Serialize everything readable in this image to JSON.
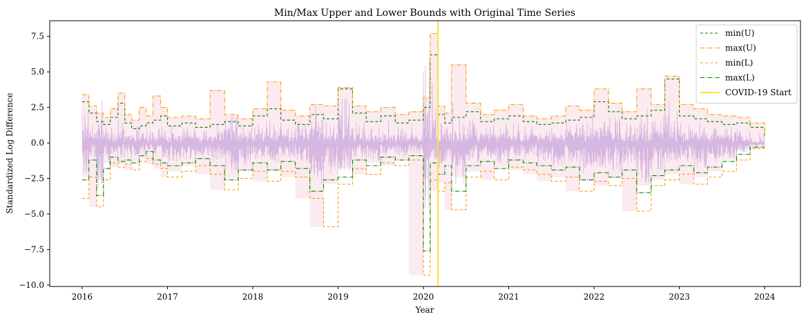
{
  "chart_data": {
    "type": "line",
    "title": "Min/Max Upper and Lower Bounds with Original Time Series",
    "xlabel": "Year",
    "ylabel": "Standardized Log Difference",
    "xlim": [
      2015.62,
      2024.42
    ],
    "ylim": [
      -10.1,
      8.6
    ],
    "x_ticks": [
      2016,
      2017,
      2018,
      2019,
      2020,
      2021,
      2022,
      2023,
      2024
    ],
    "x_tick_labels": [
      "2016",
      "2017",
      "2018",
      "2019",
      "2020",
      "2021",
      "2022",
      "2023",
      "2024"
    ],
    "y_ticks": [
      7.5,
      5.0,
      2.5,
      0.0,
      -2.5,
      -5.0,
      -7.5,
      -10.0
    ],
    "y_tick_labels": [
      "7.5",
      "5.0",
      "2.5",
      "0.0",
      "−2.5",
      "−5.0",
      "−7.5",
      "−10.0"
    ],
    "grid": false,
    "legend_position": "top-right",
    "series": [
      {
        "name": "min(U)",
        "color": "#008000",
        "dash": "4,3",
        "x": [
          2016.0,
          2016.08,
          2016.17,
          2016.25,
          2016.33,
          2016.42,
          2016.5,
          2016.58,
          2016.67,
          2016.75,
          2016.83,
          2016.92,
          2017.0,
          2017.17,
          2017.33,
          2017.5,
          2017.67,
          2017.83,
          2018.0,
          2018.17,
          2018.33,
          2018.5,
          2018.67,
          2018.83,
          2019.0,
          2019.17,
          2019.33,
          2019.5,
          2019.67,
          2019.83,
          2020.0,
          2020.08,
          2020.17,
          2020.25,
          2020.33,
          2020.5,
          2020.67,
          2020.83,
          2021.0,
          2021.17,
          2021.33,
          2021.5,
          2021.67,
          2021.83,
          2022.0,
          2022.17,
          2022.33,
          2022.5,
          2022.67,
          2022.83,
          2023.0,
          2023.17,
          2023.33,
          2023.5,
          2023.67,
          2023.83,
          2024.0
        ],
        "y": [
          2.9,
          2.1,
          1.5,
          1.3,
          1.8,
          2.8,
          1.4,
          1.0,
          1.2,
          1.4,
          1.6,
          1.9,
          1.2,
          1.4,
          1.1,
          1.3,
          1.5,
          1.2,
          1.9,
          2.4,
          1.6,
          1.3,
          2.0,
          1.7,
          3.8,
          2.1,
          1.5,
          1.9,
          1.4,
          1.6,
          2.5,
          6.2,
          2.0,
          1.4,
          1.8,
          2.2,
          1.5,
          1.7,
          1.9,
          1.5,
          1.3,
          1.4,
          1.6,
          1.8,
          2.9,
          2.2,
          1.7,
          1.9,
          2.3,
          4.5,
          1.9,
          1.7,
          1.5,
          1.3,
          1.4,
          1.1,
          0.4
        ]
      },
      {
        "name": "max(U)",
        "color": "#ff9900",
        "dash": "6,2,1,2",
        "x": [
          2016.0,
          2016.08,
          2016.17,
          2016.25,
          2016.33,
          2016.42,
          2016.5,
          2016.58,
          2016.67,
          2016.75,
          2016.83,
          2016.92,
          2017.0,
          2017.17,
          2017.33,
          2017.5,
          2017.67,
          2017.83,
          2018.0,
          2018.17,
          2018.33,
          2018.5,
          2018.67,
          2018.83,
          2019.0,
          2019.17,
          2019.33,
          2019.5,
          2019.67,
          2019.83,
          2020.0,
          2020.08,
          2020.17,
          2020.25,
          2020.33,
          2020.5,
          2020.67,
          2020.83,
          2021.0,
          2021.17,
          2021.33,
          2021.5,
          2021.67,
          2021.83,
          2022.0,
          2022.17,
          2022.33,
          2022.5,
          2022.67,
          2022.83,
          2023.0,
          2023.17,
          2023.33,
          2023.5,
          2023.67,
          2023.83,
          2024.0
        ],
        "y": [
          3.4,
          2.6,
          2.1,
          1.8,
          2.4,
          3.5,
          2.0,
          1.6,
          2.5,
          1.9,
          3.3,
          2.5,
          1.8,
          1.9,
          1.7,
          3.7,
          2.0,
          1.7,
          2.4,
          4.3,
          2.3,
          1.9,
          2.7,
          2.6,
          3.9,
          2.6,
          2.2,
          2.5,
          2.0,
          2.2,
          3.2,
          7.7,
          2.6,
          2.1,
          5.5,
          2.8,
          2.0,
          2.3,
          2.7,
          1.9,
          1.7,
          1.9,
          2.6,
          2.3,
          3.8,
          2.8,
          2.2,
          3.8,
          2.7,
          4.7,
          2.7,
          2.4,
          2.0,
          1.9,
          1.8,
          1.4,
          0.5
        ]
      },
      {
        "name": "min(L)",
        "color": "#ff9900",
        "dash": "4,3",
        "x": [
          2016.0,
          2016.08,
          2016.17,
          2016.25,
          2016.33,
          2016.42,
          2016.5,
          2016.58,
          2016.67,
          2016.75,
          2016.83,
          2016.92,
          2017.0,
          2017.17,
          2017.33,
          2017.5,
          2017.67,
          2017.83,
          2018.0,
          2018.17,
          2018.33,
          2018.5,
          2018.67,
          2018.83,
          2019.0,
          2019.17,
          2019.33,
          2019.5,
          2019.67,
          2019.83,
          2020.0,
          2020.08,
          2020.17,
          2020.25,
          2020.33,
          2020.5,
          2020.67,
          2020.83,
          2021.0,
          2021.17,
          2021.33,
          2021.5,
          2021.67,
          2021.83,
          2022.0,
          2022.17,
          2022.33,
          2022.5,
          2022.67,
          2022.83,
          2023.0,
          2023.17,
          2023.33,
          2023.5,
          2023.67,
          2023.83,
          2024.0
        ],
        "y": [
          -3.9,
          -2.4,
          -4.5,
          -2.6,
          -1.4,
          -1.7,
          -1.5,
          -1.9,
          -1.3,
          -1.1,
          -1.5,
          -1.8,
          -2.4,
          -2.0,
          -1.6,
          -2.2,
          -3.3,
          -2.5,
          -2.0,
          -2.7,
          -2.0,
          -2.4,
          -3.9,
          -5.9,
          -2.9,
          -1.8,
          -2.2,
          -1.4,
          -1.6,
          -1.2,
          -9.3,
          -2.6,
          -3.4,
          -2.8,
          -4.7,
          -2.4,
          -2.0,
          -2.6,
          -1.7,
          -1.9,
          -2.2,
          -2.7,
          -2.4,
          -3.4,
          -2.7,
          -3.0,
          -2.5,
          -4.8,
          -3.0,
          -2.6,
          -2.2,
          -2.9,
          -2.4,
          -2.0,
          -1.2,
          -0.4,
          -0.4
        ]
      },
      {
        "name": "max(L)",
        "color": "#008000",
        "dash": "6,2,1,2",
        "x": [
          2016.0,
          2016.08,
          2016.17,
          2016.25,
          2016.33,
          2016.42,
          2016.5,
          2016.58,
          2016.67,
          2016.75,
          2016.83,
          2016.92,
          2017.0,
          2017.17,
          2017.33,
          2017.5,
          2017.67,
          2017.83,
          2018.0,
          2018.17,
          2018.33,
          2018.5,
          2018.67,
          2018.83,
          2019.0,
          2019.17,
          2019.33,
          2019.5,
          2019.67,
          2019.83,
          2020.0,
          2020.08,
          2020.17,
          2020.25,
          2020.33,
          2020.5,
          2020.67,
          2020.83,
          2021.0,
          2021.17,
          2021.33,
          2021.5,
          2021.67,
          2021.83,
          2022.0,
          2022.17,
          2022.33,
          2022.5,
          2022.67,
          2022.83,
          2023.0,
          2023.17,
          2023.33,
          2023.5,
          2023.67,
          2023.83,
          2024.0
        ],
        "y": [
          -2.6,
          -1.2,
          -3.7,
          -1.8,
          -1.0,
          -1.3,
          -1.2,
          -1.4,
          -0.9,
          -0.6,
          -1.2,
          -1.4,
          -1.6,
          -1.4,
          -1.1,
          -1.6,
          -2.6,
          -1.9,
          -1.4,
          -1.9,
          -1.3,
          -1.8,
          -3.4,
          -2.6,
          -2.4,
          -1.2,
          -1.6,
          -1.0,
          -1.2,
          -0.9,
          -7.6,
          -1.4,
          -2.2,
          -1.6,
          -3.4,
          -1.6,
          -1.3,
          -1.8,
          -1.2,
          -1.4,
          -1.6,
          -1.9,
          -1.7,
          -2.6,
          -2.1,
          -2.4,
          -1.9,
          -3.5,
          -2.3,
          -1.9,
          -1.6,
          -2.1,
          -1.7,
          -1.3,
          -0.8,
          -0.3,
          -0.3
        ]
      }
    ],
    "vertical_line": {
      "name": "COVID-19 Start",
      "x": 2020.17,
      "color": "#ffe033"
    },
    "original_series_color": "#c9a6dc",
    "fill_color": "#f9e3ea"
  }
}
